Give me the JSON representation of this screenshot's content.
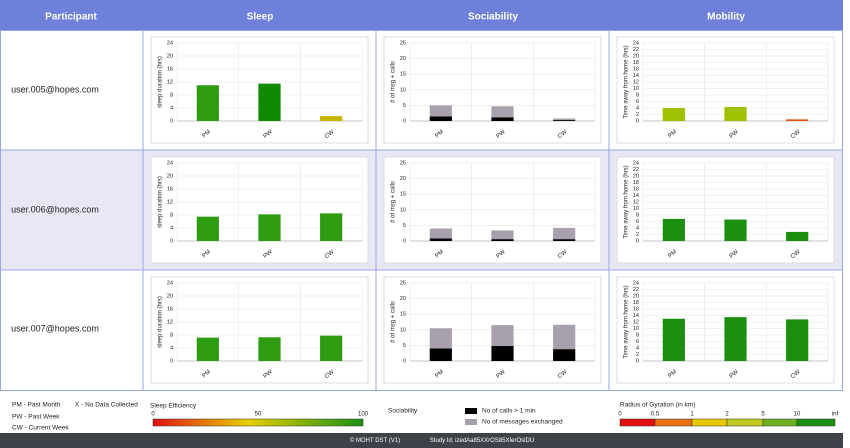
{
  "table": {
    "headers": [
      "Participant",
      "Sleep",
      "Sociability",
      "Mobility"
    ],
    "participants": [
      "user.005@hopes.com",
      "user.006@hopes.com",
      "user.007@hopes.com"
    ]
  },
  "chart_data": [
    {
      "type": "bar",
      "ylabel": "sleep duration (hrs)",
      "categories": [
        "PM",
        "PW",
        "CW"
      ],
      "values": [
        11,
        11.5,
        1.5
      ],
      "colors": [
        "#2e9b10",
        "#118a00",
        "#c8b400"
      ],
      "ylim": [
        0,
        24
      ],
      "yticks": [
        0,
        4,
        8,
        12,
        16,
        20,
        24
      ],
      "grid": true
    },
    {
      "type": "stacked_bar",
      "ylabel": "# of msg + calls",
      "categories": [
        "PM",
        "PW",
        "CW"
      ],
      "series": [
        {
          "color": "#000000",
          "values": [
            1.5,
            1.2,
            0.3
          ]
        },
        {
          "color": "#a9a0ae",
          "values": [
            3.5,
            3.5,
            0.5
          ]
        }
      ],
      "ylim": [
        0,
        25
      ],
      "yticks": [
        0,
        5,
        10,
        15,
        20,
        25
      ],
      "grid": true
    },
    {
      "type": "bar",
      "ylabel": "Time away from home (hrs)",
      "categories": [
        "PM",
        "PW",
        "CW"
      ],
      "values": [
        4,
        4.3,
        0.5
      ],
      "colors": [
        "#9fc200",
        "#9fc200",
        "#e8500a"
      ],
      "ylim": [
        0,
        24
      ],
      "yticks": [
        0,
        2,
        4,
        6,
        8,
        10,
        12,
        14,
        16,
        18,
        20,
        22,
        24
      ],
      "grid": true
    },
    {
      "type": "bar",
      "ylabel": "sleep duration (hrs)",
      "categories": [
        "PM",
        "PW",
        "CW"
      ],
      "values": [
        7.5,
        8.2,
        8.5
      ],
      "colors": [
        "#2e9b10",
        "#2e9b10",
        "#2e9b10"
      ],
      "ylim": [
        0,
        24
      ],
      "yticks": [
        0,
        4,
        8,
        12,
        16,
        20,
        24
      ],
      "grid": true
    },
    {
      "type": "stacked_bar",
      "ylabel": "# of msg + calls",
      "categories": [
        "PM",
        "PW",
        "CW"
      ],
      "series": [
        {
          "color": "#000000",
          "values": [
            0.8,
            0.6,
            0.6
          ]
        },
        {
          "color": "#a9a0ae",
          "values": [
            3.2,
            2.8,
            3.6
          ]
        }
      ],
      "ylim": [
        0,
        25
      ],
      "yticks": [
        0,
        5,
        10,
        15,
        20,
        25
      ],
      "grid": true
    },
    {
      "type": "bar",
      "ylabel": "Time away from home (hrs)",
      "categories": [
        "PM",
        "PW",
        "CW"
      ],
      "values": [
        6.8,
        6.6,
        2.8
      ],
      "colors": [
        "#1a8f10",
        "#1a8f10",
        "#1a8f10"
      ],
      "ylim": [
        0,
        24
      ],
      "yticks": [
        0,
        2,
        4,
        6,
        8,
        10,
        12,
        14,
        16,
        18,
        20,
        22,
        24
      ],
      "grid": true
    },
    {
      "type": "bar",
      "ylabel": "sleep duration (hrs)",
      "categories": [
        "PM",
        "PW",
        "CW"
      ],
      "values": [
        7.2,
        7.3,
        7.8
      ],
      "colors": [
        "#2e9b10",
        "#2e9b10",
        "#2e9b10"
      ],
      "ylim": [
        0,
        24
      ],
      "yticks": [
        0,
        4,
        8,
        12,
        16,
        20,
        24
      ],
      "grid": true
    },
    {
      "type": "stacked_bar",
      "ylabel": "# of msg + calls",
      "categories": [
        "PM",
        "PW",
        "CW"
      ],
      "series": [
        {
          "color": "#000000",
          "values": [
            4,
            4.8,
            3.8
          ]
        },
        {
          "color": "#a9a0ae",
          "values": [
            6.5,
            6.7,
            7.8
          ]
        }
      ],
      "ylim": [
        0,
        25
      ],
      "yticks": [
        0,
        5,
        10,
        15,
        20,
        25
      ],
      "grid": true
    },
    {
      "type": "bar",
      "ylabel": "Time away from home (hrs)",
      "categories": [
        "PM",
        "PW",
        "CW"
      ],
      "values": [
        13,
        13.5,
        12.8
      ],
      "colors": [
        "#1a8f10",
        "#1a8f10",
        "#1a8f10"
      ],
      "ylim": [
        0,
        24
      ],
      "yticks": [
        0,
        2,
        4,
        6,
        8,
        10,
        12,
        14,
        16,
        18,
        20,
        22,
        24
      ],
      "grid": true
    }
  ],
  "legend": {
    "abbreviations": [
      "PM - Past Month",
      "X - No Data Collected",
      "PW - Past Week",
      "CW - Current Week"
    ],
    "sleep_title": "Sleep Efficiency",
    "sleep_ticks": [
      0,
      50,
      100
    ],
    "sociability_title": "Sociability",
    "sociability_items": [
      "No of calls > 1 min",
      "No of messages exchanged"
    ],
    "gyration_title": "Radius of Gyration (in km)",
    "gyration_ticks": [
      0,
      0.5,
      1,
      2,
      5,
      10,
      "inf"
    ]
  },
  "footer": {
    "copyright": "© MOHT DST (V1)",
    "study_id": "Study Id: izedAa85XXrOS85XIerOslDU"
  }
}
